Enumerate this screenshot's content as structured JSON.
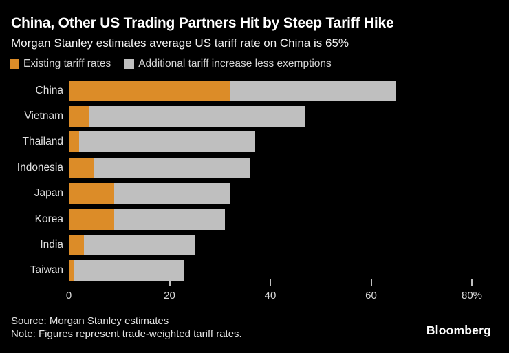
{
  "header": {
    "title": "China, Other US Trading Partners Hit by Steep Tariff Hike",
    "subtitle": "Morgan Stanley estimates average US tariff rate on China is 65%"
  },
  "legend": [
    {
      "name": "existing",
      "label": "Existing tariff rates",
      "color": "#DC8C28"
    },
    {
      "name": "additional",
      "label": "Additional tariff increase less exemptions",
      "color": "#BFBFBF"
    }
  ],
  "chart_data": {
    "type": "bar",
    "orientation": "horizontal",
    "stacked": true,
    "categories": [
      "China",
      "Vietnam",
      "Thailand",
      "Indonesia",
      "Japan",
      "Korea",
      "India",
      "Taiwan"
    ],
    "series": [
      {
        "name": "Existing tariff rates",
        "color": "#DC8C28",
        "values": [
          32,
          4,
          2,
          5,
          9,
          9,
          3,
          1
        ]
      },
      {
        "name": "Additional tariff increase less exemptions",
        "color": "#BFBFBF",
        "values": [
          33,
          43,
          35,
          31,
          23,
          22,
          22,
          22
        ]
      }
    ],
    "totals": [
      65,
      47,
      37,
      36,
      32,
      31,
      25,
      23
    ],
    "xlabel": "",
    "ylabel": "",
    "xlim": [
      0,
      80
    ],
    "x_ticks": [
      0,
      20,
      40,
      60,
      80
    ],
    "x_tick_labels": [
      "0",
      "20",
      "40",
      "60",
      "80%"
    ],
    "unit": "%",
    "grid": false,
    "legend_position": "top"
  },
  "footer": {
    "source": "Source: Morgan Stanley estimates",
    "note": "Note: Figures represent trade-weighted tariff rates.",
    "brand": "Bloomberg"
  },
  "colors": {
    "background": "#000000",
    "title_text": "#ffffff",
    "label_text": "#e0e0e0",
    "axis_text": "#d9d9d9",
    "orange": "#DC8C28",
    "gray": "#BFBFBF"
  }
}
